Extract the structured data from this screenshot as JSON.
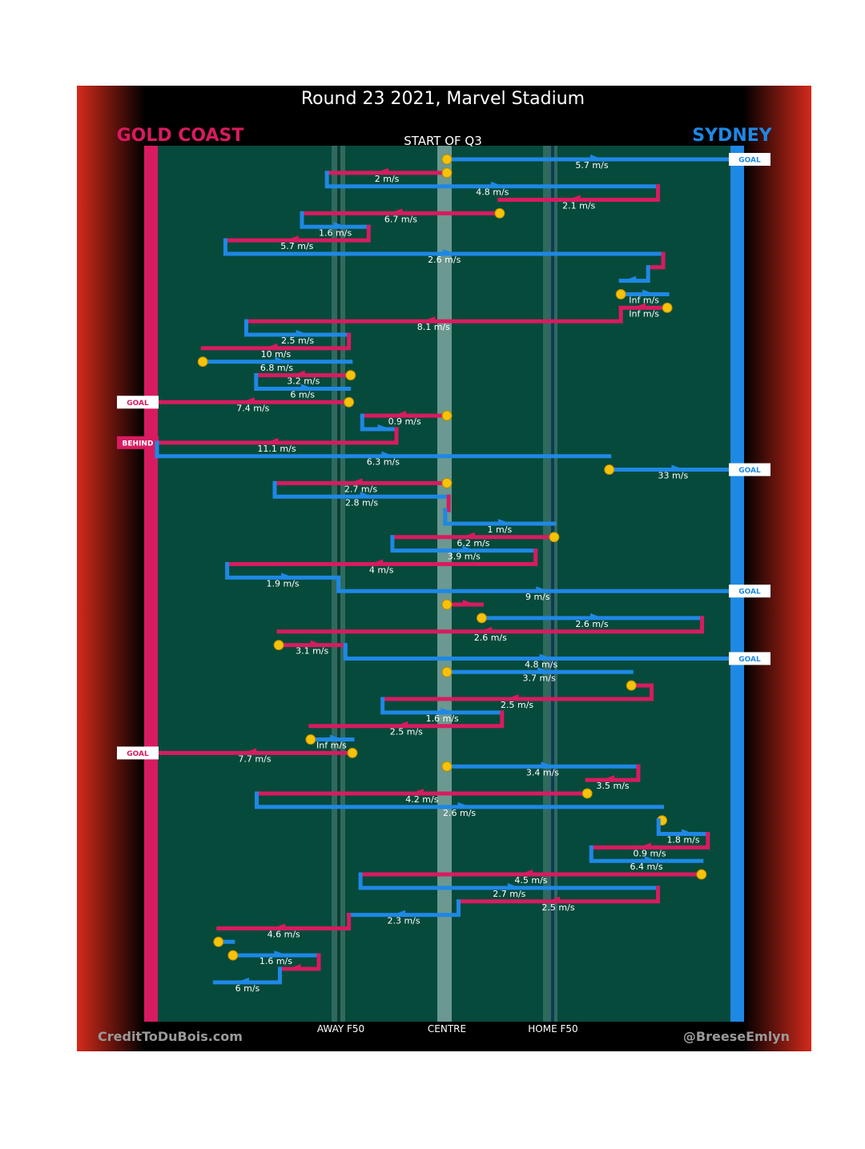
{
  "chart_data": {
    "type": "line",
    "title": "Round 23 2021, Marvel Stadium",
    "subtitle": "START OF Q3",
    "teams": {
      "left": {
        "name": "GOLD COAST",
        "color": "#d81b60"
      },
      "right": {
        "name": "SYDNEY",
        "color": "#1e88e5"
      }
    },
    "x_ticks": [
      {
        "label": "AWAY F50",
        "x": 0.317
      },
      {
        "label": "CENTRE",
        "x": 0.5
      },
      {
        "label": "HOME F50",
        "x": 0.683
      }
    ],
    "xlim": [
      0,
      1
    ],
    "credits": {
      "left": "CreditToDuBois.com",
      "right": "@BreeseEmlyn"
    },
    "chains": [
      {
        "team": "syd",
        "x": [
          0.5,
          0.5,
          1.0
        ],
        "speed": "5.7 m/s",
        "ret": 0,
        "score": "GOAL"
      },
      {
        "team": "gc",
        "x": [
          0.5,
          0.5,
          0.293
        ],
        "speed": "2 m/s",
        "ret": 0
      },
      {
        "team": "syd",
        "x": [
          0.293,
          0.293,
          0.864
        ],
        "speed": "4.8 m/s",
        "ret": 1
      },
      {
        "team": "gc",
        "x": [
          0.864,
          0.864,
          0.591
        ],
        "speed": "2.1 m/s",
        "ret": 1
      },
      {
        "team": "gc",
        "x": [
          0.591,
          0.591,
          0.25
        ],
        "speed": "6.7 m/s",
        "ret": 0
      },
      {
        "team": "syd",
        "x": [
          0.25,
          0.25,
          0.365
        ],
        "speed": "1.6 m/s",
        "ret": 1
      },
      {
        "team": "gc",
        "x": [
          0.365,
          0.365,
          0.118
        ],
        "speed": "5.7 m/s",
        "ret": 1
      },
      {
        "team": "syd",
        "x": [
          0.118,
          0.118,
          0.873
        ],
        "speed": "2.6 m/s",
        "ret": 1
      },
      {
        "team": "gc",
        "x": [
          0.873,
          0.873,
          0.847
        ],
        "speed": "",
        "ret": 1
      },
      {
        "team": "syd",
        "x": [
          0.847,
          0.847,
          0.8
        ],
        "speed": "",
        "ret": 1
      },
      {
        "team": "syd",
        "x": [
          0.8,
          0.8,
          0.88
        ],
        "speed": "Inf m/s",
        "ret": 0
      },
      {
        "team": "gc",
        "x": [
          0.88,
          0.88,
          0.8
        ],
        "speed": "Inf m/s",
        "ret": 0
      },
      {
        "team": "gc",
        "x": [
          0.8,
          0.8,
          0.154
        ],
        "speed": "8.1 m/s",
        "ret": 1
      },
      {
        "team": "syd",
        "x": [
          0.154,
          0.154,
          0.331
        ],
        "speed": "2.5 m/s",
        "ret": 1
      },
      {
        "team": "gc",
        "x": [
          0.331,
          0.331,
          0.079
        ],
        "speed": "10 m/s",
        "ret": 1
      },
      {
        "team": "syd",
        "x": [
          0.079,
          0.079,
          0.334
        ],
        "speed": "6.8 m/s",
        "ret": 0
      },
      {
        "team": "gc",
        "x": [
          0.334,
          0.334,
          0.171
        ],
        "speed": "3.2 m/s",
        "ret": 0
      },
      {
        "team": "syd",
        "x": [
          0.171,
          0.171,
          0.331
        ],
        "speed": "6 m/s",
        "ret": 1
      },
      {
        "team": "gc",
        "x": [
          0.331,
          0.331,
          0.0
        ],
        "speed": "7.4 m/s",
        "ret": 0,
        "score": "GOAL"
      },
      {
        "team": "gc",
        "x": [
          0.5,
          0.5,
          0.354
        ],
        "speed": "0.9 m/s",
        "ret": 0
      },
      {
        "team": "syd",
        "x": [
          0.354,
          0.354,
          0.413
        ],
        "speed": "",
        "ret": 1
      },
      {
        "team": "gc",
        "x": [
          0.413,
          0.413,
          0.0
        ],
        "speed": "11.1 m/s",
        "ret": 1,
        "score": "BEHIND"
      },
      {
        "team": "syd",
        "x": [
          0.0,
          0.0,
          0.78
        ],
        "speed": "6.3 m/s",
        "ret": 1
      },
      {
        "team": "syd",
        "x": [
          0.78,
          0.78,
          1.0
        ],
        "speed": "33 m/s",
        "ret": 0,
        "score": "GOAL"
      },
      {
        "team": "gc",
        "x": [
          0.5,
          0.5,
          0.203
        ],
        "speed": "2.7 m/s",
        "ret": 0
      },
      {
        "team": "syd",
        "x": [
          0.203,
          0.203,
          0.503
        ],
        "speed": "2.8 m/s",
        "ret": 1
      },
      {
        "team": "gc",
        "x": [
          0.503,
          0.503,
          0.497
        ],
        "speed": "",
        "ret": 1
      },
      {
        "team": "syd",
        "x": [
          0.497,
          0.497,
          0.685
        ],
        "speed": "1 m/s",
        "ret": 1
      },
      {
        "team": "gc",
        "x": [
          0.685,
          0.685,
          0.406
        ],
        "speed": "6.2 m/s",
        "ret": 0
      },
      {
        "team": "syd",
        "x": [
          0.406,
          0.406,
          0.653
        ],
        "speed": "3.9 m/s",
        "ret": 1
      },
      {
        "team": "gc",
        "x": [
          0.653,
          0.653,
          0.121
        ],
        "speed": "4 m/s",
        "ret": 1
      },
      {
        "team": "syd",
        "x": [
          0.121,
          0.121,
          0.313
        ],
        "speed": "1.9 m/s",
        "ret": 1
      },
      {
        "team": "syd",
        "x": [
          0.313,
          0.313,
          1.0
        ],
        "speed": "9 m/s",
        "ret": 1,
        "score": "GOAL"
      },
      {
        "team": "gc",
        "x": [
          0.5,
          0.5,
          0.56
        ],
        "speed": "",
        "ret": 0
      },
      {
        "team": "syd",
        "x": [
          0.56,
          0.56,
          0.94
        ],
        "speed": "2.6 m/s",
        "ret": 0
      },
      {
        "team": "gc",
        "x": [
          0.94,
          0.94,
          0.21
        ],
        "speed": "2.6 m/s",
        "ret": 1
      },
      {
        "team": "gc",
        "x": [
          0.21,
          0.21,
          0.325
        ],
        "speed": "3.1 m/s",
        "ret": 0
      },
      {
        "team": "syd",
        "x": [
          0.325,
          0.325,
          1.0
        ],
        "speed": "4.8 m/s",
        "ret": 1,
        "score": "GOAL"
      },
      {
        "team": "syd",
        "x": [
          0.5,
          0.5,
          0.818
        ],
        "speed": "3.7 m/s",
        "ret": 0
      },
      {
        "team": "gc",
        "x": [
          0.818,
          0.818,
          0.853
        ],
        "speed": "",
        "ret": 0
      },
      {
        "team": "gc",
        "x": [
          0.853,
          0.853,
          0.389
        ],
        "speed": "2.5 m/s",
        "ret": 1
      },
      {
        "team": "syd",
        "x": [
          0.389,
          0.389,
          0.595
        ],
        "speed": "1.6 m/s",
        "ret": 1
      },
      {
        "team": "gc",
        "x": [
          0.595,
          0.595,
          0.265
        ],
        "speed": "2.5 m/s",
        "ret": 1
      },
      {
        "team": "syd",
        "x": [
          0.265,
          0.265,
          0.337
        ],
        "speed": "Inf m/s",
        "ret": 0
      },
      {
        "team": "gc",
        "x": [
          0.337,
          0.337,
          0.0
        ],
        "speed": "7.7 m/s",
        "ret": 0,
        "score": "GOAL"
      },
      {
        "team": "syd",
        "x": [
          0.5,
          0.5,
          0.83
        ],
        "speed": "3.4 m/s",
        "ret": 0
      },
      {
        "team": "gc",
        "x": [
          0.83,
          0.83,
          0.742
        ],
        "speed": "3.5 m/s",
        "ret": 1
      },
      {
        "team": "gc",
        "x": [
          0.742,
          0.742,
          0.172
        ],
        "speed": "4.2 m/s",
        "ret": 0
      },
      {
        "team": "syd",
        "x": [
          0.172,
          0.172,
          0.871
        ],
        "speed": "2.6 m/s",
        "ret": 1
      },
      {
        "team": "gc",
        "x": [
          0.871,
          0.871,
          0.865
        ],
        "speed": "",
        "ret": 0
      },
      {
        "team": "syd",
        "x": [
          0.865,
          0.865,
          0.95
        ],
        "speed": "1.8 m/s",
        "ret": 1
      },
      {
        "team": "gc",
        "x": [
          0.95,
          0.95,
          0.749
        ],
        "speed": "0.9 m/s",
        "ret": 1
      },
      {
        "team": "syd",
        "x": [
          0.749,
          0.749,
          0.939
        ],
        "speed": "6.4 m/s",
        "ret": 1
      },
      {
        "team": "gc",
        "x": [
          0.939,
          0.939,
          0.351
        ],
        "speed": "4.5 m/s",
        "ret": 0
      },
      {
        "team": "syd",
        "x": [
          0.351,
          0.351,
          0.864
        ],
        "speed": "2.7 m/s",
        "ret": 1
      },
      {
        "team": "gc",
        "x": [
          0.864,
          0.864,
          0.52
        ],
        "speed": "2.5 m/s",
        "ret": 1
      },
      {
        "team": "syd",
        "x": [
          0.52,
          0.52,
          0.331
        ],
        "speed": "2.3 m/s",
        "ret": 1
      },
      {
        "team": "gc",
        "x": [
          0.331,
          0.331,
          0.106
        ],
        "speed": "4.6 m/s",
        "ret": 1
      },
      {
        "team": "syd",
        "x": [
          0.106,
          0.106,
          0.131
        ],
        "speed": "",
        "ret": 0
      },
      {
        "team": "syd",
        "x": [
          0.131,
          0.131,
          0.279
        ],
        "speed": "1.6 m/s",
        "ret": 0
      },
      {
        "team": "gc",
        "x": [
          0.279,
          0.279,
          0.212
        ],
        "speed": "",
        "ret": 1
      },
      {
        "team": "syd",
        "x": [
          0.212,
          0.212,
          0.1
        ],
        "speed": "6 m/s",
        "ret": 1
      }
    ]
  }
}
